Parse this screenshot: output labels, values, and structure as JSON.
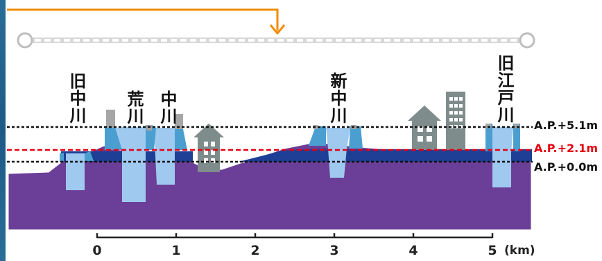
{
  "rivers": [
    {
      "id": "kyu-nakagawa",
      "label": "旧中川"
    },
    {
      "id": "arakawa",
      "label": "荒川"
    },
    {
      "id": "nakagawa",
      "label": "中川"
    },
    {
      "id": "shin-nakagawa",
      "label": "新中川"
    },
    {
      "id": "kyu-edogawa",
      "label": "旧江戸川"
    }
  ],
  "levels": [
    {
      "id": "ap-5-1",
      "label": "A.P.+5.1m",
      "color": "#111111"
    },
    {
      "id": "ap-2-1",
      "label": "A.P.+2.1m",
      "color": "#e60012"
    },
    {
      "id": "ap-0-0",
      "label": "A.P.+0.0m",
      "color": "#111111"
    }
  ],
  "axis": {
    "ticks": [
      "0",
      "1",
      "2",
      "3",
      "4",
      "5"
    ],
    "unit": "(km)"
  },
  "colors": {
    "ground": "#6b3f97",
    "low_water": "#1f3f96",
    "river_water": "#9fc9ef",
    "embankment": "#4a9fd0",
    "wall": "#a6a6a6",
    "building": "#7f8c8c",
    "pointer": "#f08c00"
  }
}
